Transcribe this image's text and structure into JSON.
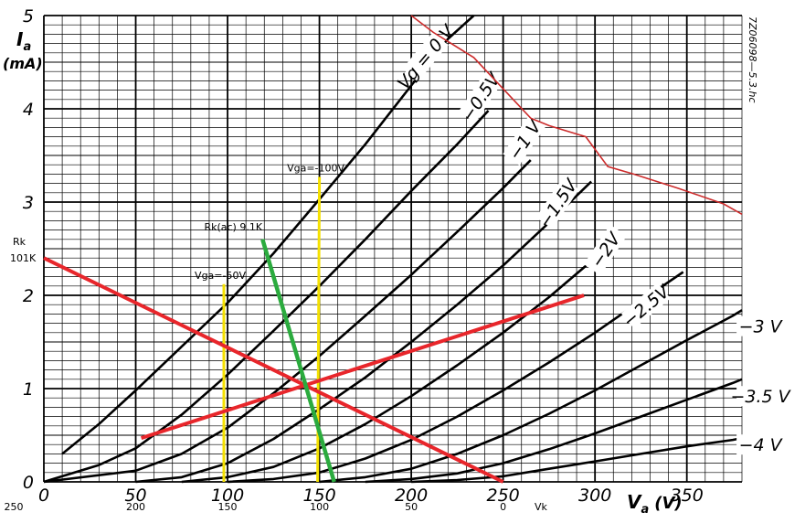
{
  "chart_data": {
    "type": "line",
    "title": "",
    "xlabel": "V",
    "xlabel_sub": "a",
    "xlabel_unit": "(V)",
    "ylabel": "I",
    "ylabel_sub": "a",
    "ylabel_unit": "(mA)",
    "xlim": [
      0,
      380
    ],
    "ylim": [
      0,
      5
    ],
    "x_ticks": [
      "0",
      "50",
      "100",
      "150",
      "200",
      "250",
      "300",
      "350"
    ],
    "y_ticks": [
      "0",
      "1",
      "2",
      "3",
      "4",
      "5"
    ],
    "x_tick_values": [
      0,
      50,
      100,
      150,
      200,
      250,
      300,
      350
    ],
    "y_tick_values": [
      0,
      1,
      2,
      3,
      4,
      5
    ],
    "vk_axis_ticks": [
      "250",
      "200",
      "150",
      "100",
      "50",
      "0"
    ],
    "vk_axis_values": [
      0,
      50,
      100,
      150,
      200,
      250
    ],
    "vk_axis_label": "Vk",
    "grid": true,
    "grid_minor_step_x": 10,
    "grid_minor_step_y": 0.1,
    "watermark": "7Z06098—5.3.hc",
    "colors": {
      "curve": "#000000",
      "dissipation": "#cc2b2b",
      "load_line": "#e8262b",
      "cathode_line": "#2bab3e",
      "grid_voltage_line": "#f5e100"
    },
    "series": [
      {
        "name": "Vg = 0 V",
        "label": "Vg = 0 V",
        "label_at": [
          208,
          4.55
        ],
        "label_angle": -50,
        "points": [
          [
            10,
            0.3
          ],
          [
            30,
            0.62
          ],
          [
            50,
            0.98
          ],
          [
            75,
            1.45
          ],
          [
            100,
            1.92
          ],
          [
            125,
            2.45
          ],
          [
            150,
            3.03
          ],
          [
            175,
            3.62
          ],
          [
            200,
            4.25
          ],
          [
            220,
            4.75
          ],
          [
            234,
            5.0
          ]
        ]
      },
      {
        "name": "-0.5 V",
        "label": "−0.5V",
        "label_at": [
          238,
          4.12
        ],
        "label_angle": -56,
        "points": [
          [
            0,
            0
          ],
          [
            30,
            0.18
          ],
          [
            50,
            0.36
          ],
          [
            75,
            0.72
          ],
          [
            100,
            1.15
          ],
          [
            125,
            1.62
          ],
          [
            150,
            2.1
          ],
          [
            175,
            2.6
          ],
          [
            200,
            3.12
          ],
          [
            225,
            3.62
          ],
          [
            242,
            3.98
          ]
        ]
      },
      {
        "name": "-1 V",
        "label": "−1 V",
        "label_at": [
          262,
          3.66
        ],
        "label_angle": -56,
        "points": [
          [
            0,
            0
          ],
          [
            50,
            0.12
          ],
          [
            75,
            0.3
          ],
          [
            100,
            0.58
          ],
          [
            125,
            0.95
          ],
          [
            150,
            1.35
          ],
          [
            175,
            1.78
          ],
          [
            200,
            2.22
          ],
          [
            225,
            2.68
          ],
          [
            250,
            3.15
          ],
          [
            265,
            3.45
          ]
        ]
      },
      {
        "name": "-1.5 V",
        "label": "−1.5V",
        "label_at": [
          280,
          2.98
        ],
        "label_angle": -56,
        "points": [
          [
            50,
            0
          ],
          [
            75,
            0.05
          ],
          [
            100,
            0.2
          ],
          [
            125,
            0.46
          ],
          [
            150,
            0.78
          ],
          [
            175,
            1.12
          ],
          [
            200,
            1.5
          ],
          [
            225,
            1.9
          ],
          [
            250,
            2.32
          ],
          [
            275,
            2.78
          ],
          [
            298,
            3.22
          ]
        ]
      },
      {
        "name": "-2 V",
        "label": "−2V",
        "label_at": [
          306,
          2.48
        ],
        "label_angle": -56,
        "points": [
          [
            75,
            0
          ],
          [
            100,
            0.05
          ],
          [
            125,
            0.16
          ],
          [
            150,
            0.36
          ],
          [
            175,
            0.62
          ],
          [
            200,
            0.92
          ],
          [
            225,
            1.25
          ],
          [
            250,
            1.6
          ],
          [
            275,
            1.98
          ],
          [
            300,
            2.4
          ],
          [
            310,
            2.55
          ]
        ]
      },
      {
        "name": "-2.5 V",
        "label": "−2.5V",
        "label_at": [
          328,
          1.88
        ],
        "label_angle": -40,
        "points": [
          [
            100,
            0
          ],
          [
            125,
            0.03
          ],
          [
            150,
            0.1
          ],
          [
            175,
            0.25
          ],
          [
            200,
            0.45
          ],
          [
            225,
            0.7
          ],
          [
            250,
            0.98
          ],
          [
            275,
            1.28
          ],
          [
            300,
            1.6
          ],
          [
            325,
            1.94
          ],
          [
            348,
            2.25
          ]
        ]
      },
      {
        "name": "-3 V",
        "label": "−3 V",
        "label_at": [
          390,
          1.66
        ],
        "label_angle": 0,
        "points": [
          [
            150,
            0
          ],
          [
            175,
            0.05
          ],
          [
            200,
            0.14
          ],
          [
            225,
            0.3
          ],
          [
            250,
            0.5
          ],
          [
            275,
            0.73
          ],
          [
            300,
            0.98
          ],
          [
            325,
            1.25
          ],
          [
            350,
            1.52
          ],
          [
            375,
            1.78
          ],
          [
            380,
            1.84
          ]
        ]
      },
      {
        "name": "-3.5 V",
        "label": "−3.5 V",
        "label_at": [
          390,
          0.91
        ],
        "label_angle": 0,
        "points": [
          [
            175,
            0
          ],
          [
            200,
            0.03
          ],
          [
            225,
            0.09
          ],
          [
            250,
            0.2
          ],
          [
            275,
            0.35
          ],
          [
            300,
            0.52
          ],
          [
            325,
            0.7
          ],
          [
            350,
            0.88
          ],
          [
            375,
            1.06
          ],
          [
            380,
            1.1
          ]
        ]
      },
      {
        "name": "-4 V",
        "label": "−4 V",
        "label_at": [
          390,
          0.39
        ],
        "label_angle": 0,
        "points": [
          [
            200,
            0
          ],
          [
            225,
            0.02
          ],
          [
            250,
            0.06
          ],
          [
            275,
            0.14
          ],
          [
            300,
            0.22
          ],
          [
            325,
            0.3
          ],
          [
            350,
            0.38
          ],
          [
            375,
            0.45
          ],
          [
            380,
            0.47
          ]
        ]
      }
    ],
    "max_dissipation_curve": {
      "points": [
        [
          200,
          5.0
        ],
        [
          212,
          4.82
        ],
        [
          234,
          4.55
        ],
        [
          265,
          3.9
        ],
        [
          275,
          3.82
        ],
        [
          295,
          3.7
        ],
        [
          307,
          3.38
        ],
        [
          321,
          3.3
        ],
        [
          345,
          3.15
        ],
        [
          370,
          2.98
        ],
        [
          380,
          2.87
        ]
      ]
    },
    "load_lines": [
      {
        "name": "Rk 101K",
        "label": "Rk\n101K",
        "points": [
          [
            0,
            2.4
          ],
          [
            250,
            0
          ]
        ]
      },
      {
        "name": "red-rising",
        "points": [
          [
            53,
            0.47
          ],
          [
            294,
            2.0
          ]
        ]
      }
    ],
    "cathode_load_line": {
      "name": "Rk(ac) 9.1K",
      "label": "Rk(ac) 9.1K",
      "points": [
        [
          119,
          2.6
        ],
        [
          158,
          0
        ]
      ]
    },
    "grid_voltage_lines": [
      {
        "name": "Vga=-50V",
        "label": "Vga=-50V",
        "points": [
          [
            98,
            0
          ],
          [
            98,
            2.12
          ]
        ]
      },
      {
        "name": "Vga=-100V",
        "label": "Vga=-100V",
        "points": [
          [
            149,
            0
          ],
          [
            150,
            3.27
          ]
        ]
      }
    ]
  }
}
